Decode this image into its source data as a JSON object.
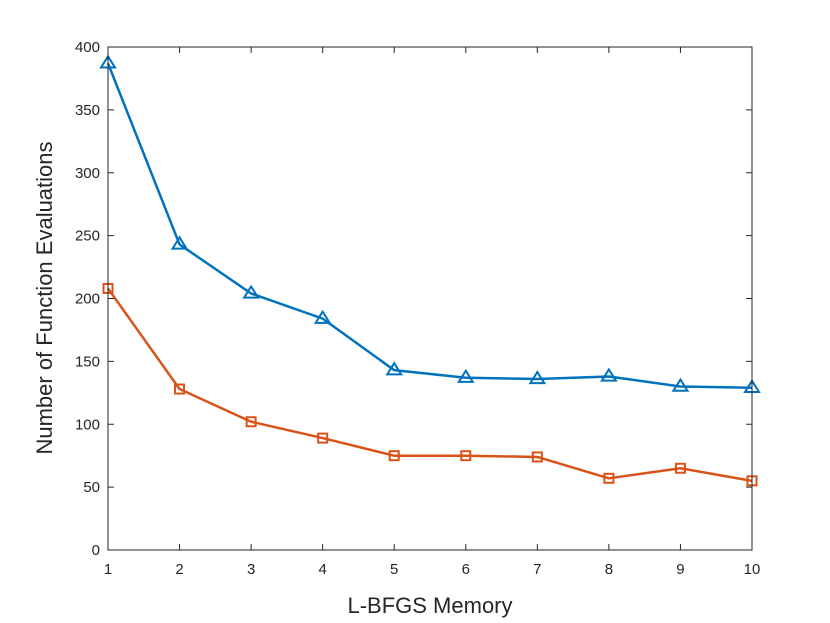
{
  "chart_data": {
    "type": "line",
    "xlabel": "L-BFGS Memory",
    "ylabel": "Number of Function Evaluations",
    "x": [
      1,
      2,
      3,
      4,
      5,
      6,
      7,
      8,
      9,
      10
    ],
    "xlim": [
      1,
      10
    ],
    "ylim": [
      0,
      400
    ],
    "xticks": [
      "1",
      "2",
      "3",
      "4",
      "5",
      "6",
      "7",
      "8",
      "9",
      "10"
    ],
    "yticks": [
      "0",
      "50",
      "100",
      "150",
      "200",
      "250",
      "300",
      "350",
      "400"
    ],
    "grid": false,
    "series": [
      {
        "marker": "triangle",
        "color": "#0072BD",
        "values": [
          387,
          243,
          204,
          184,
          143,
          137,
          136,
          138,
          130,
          129
        ]
      },
      {
        "marker": "square",
        "color": "#D95319",
        "values": [
          208,
          128,
          102,
          89,
          75,
          75,
          74,
          57,
          65,
          55
        ]
      }
    ]
  }
}
